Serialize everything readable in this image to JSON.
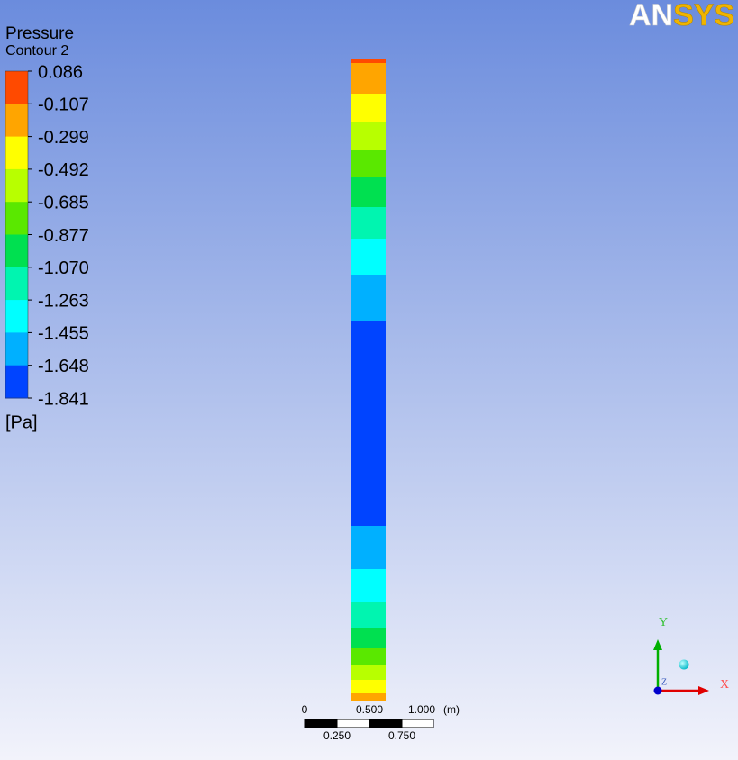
{
  "logo": {
    "first": "AN",
    "second": "SYS"
  },
  "legend": {
    "title": "Pressure",
    "subtitle": "Contour 2",
    "labels": [
      "0.086",
      "-0.107",
      "-0.299",
      "-0.492",
      "-0.685",
      "-0.877",
      "-1.070",
      "-1.263",
      "-1.455",
      "-1.648",
      "-1.841"
    ],
    "colors": [
      "#ff4a00",
      "#ffa500",
      "#ffff00",
      "#b8ff00",
      "#5ae800",
      "#00e050",
      "#00f5b0",
      "#00ffff",
      "#00b0ff",
      "#0044ff"
    ],
    "unit": "[Pa]"
  },
  "scale_bar": {
    "top_labels": [
      "0",
      "0.500",
      "1.000"
    ],
    "unit": "(m)",
    "bottom_labels": [
      "0.250",
      "0.750"
    ]
  },
  "axes": {
    "y": "Y",
    "x": "X",
    "z": "Z"
  }
}
